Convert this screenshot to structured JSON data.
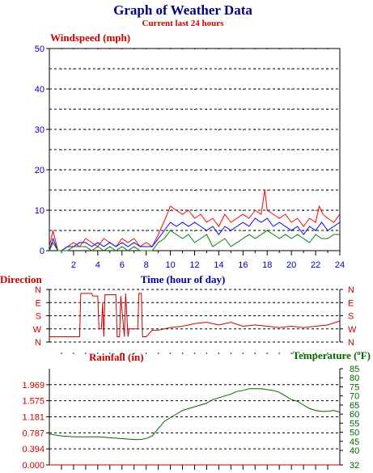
{
  "header": {
    "title": "Graph of Weather Data",
    "subtitle": "Current last 24 hours"
  },
  "colors": {
    "title": "#000080",
    "accent_red": "#cc0000",
    "axis_blue": "#0000aa",
    "temp_green": "#006600",
    "wind_red": "#ff0000",
    "wind_blue": "#0000ff",
    "wind_green": "#008000",
    "grid": "#000000"
  },
  "chart_data": [
    {
      "type": "line",
      "title": "Windspeed (mph)",
      "xlabel": "Time (hour of day)",
      "ylabel": "Windspeed (mph)",
      "xlim": [
        0,
        24
      ],
      "ylim": [
        0,
        50
      ],
      "x_ticks": [
        2,
        4,
        6,
        8,
        10,
        12,
        14,
        16,
        18,
        20,
        22,
        24
      ],
      "y_ticks": [
        0,
        10,
        20,
        30,
        40,
        50
      ],
      "grid": true,
      "series": [
        {
          "color": "#ff0000",
          "x": [
            0,
            0.3,
            0.7,
            1,
            1.5,
            2,
            2.5,
            3,
            3.5,
            4,
            4.5,
            5,
            5.5,
            6,
            6.5,
            7,
            7.5,
            8,
            8.5,
            9,
            9.3,
            9.6,
            10,
            10.5,
            11,
            11.5,
            12,
            12.5,
            13,
            13.5,
            14,
            14.5,
            15,
            15.5,
            16,
            16.5,
            17,
            17.5,
            17.8,
            18,
            18.5,
            19,
            19.5,
            20,
            20.5,
            21,
            21.5,
            22,
            22.3,
            22.6,
            23,
            23.5,
            24
          ],
          "values": [
            1,
            5,
            0,
            0,
            1,
            2,
            1,
            3,
            2,
            1,
            3,
            2,
            1,
            3,
            2,
            3,
            1,
            2,
            1,
            4,
            6,
            8,
            11,
            10,
            9,
            10,
            8,
            9,
            7,
            8,
            6,
            9,
            7,
            8,
            9,
            8,
            10,
            9,
            15,
            10,
            9,
            8,
            9,
            7,
            8,
            6,
            8,
            7,
            11,
            9,
            8,
            7,
            9
          ]
        },
        {
          "color": "#0000ff",
          "x": [
            0,
            0.3,
            0.7,
            1,
            1.5,
            2,
            2.5,
            3,
            3.5,
            4,
            4.5,
            5,
            5.5,
            6,
            6.5,
            7,
            7.5,
            8,
            8.5,
            9,
            9.5,
            10,
            10.5,
            11,
            11.5,
            12,
            12.5,
            13,
            13.5,
            14,
            14.5,
            15,
            15.5,
            16,
            16.5,
            17,
            17.5,
            18,
            18.5,
            19,
            19.5,
            20,
            20.5,
            21,
            21.5,
            22,
            22.5,
            23,
            23.5,
            24
          ],
          "values": [
            0,
            3,
            0,
            0,
            1,
            1,
            2,
            2,
            1,
            2,
            1,
            2,
            1,
            2,
            1,
            2,
            1,
            1,
            1,
            3,
            5,
            7,
            6,
            7,
            6,
            7,
            6,
            5,
            6,
            4,
            6,
            5,
            6,
            7,
            6,
            8,
            7,
            8,
            6,
            7,
            6,
            5,
            6,
            4,
            6,
            5,
            7,
            5,
            6,
            7
          ]
        },
        {
          "color": "#008000",
          "x": [
            0,
            0.3,
            0.7,
            1,
            1.5,
            2,
            2.5,
            3,
            3.5,
            4,
            4.5,
            5,
            5.5,
            6,
            6.5,
            7,
            7.5,
            8,
            8.5,
            9,
            9.5,
            10,
            10.5,
            11,
            11.5,
            12,
            12.5,
            13,
            13.5,
            14,
            14.5,
            15,
            15.5,
            16,
            16.5,
            17,
            17.5,
            18,
            18.5,
            19,
            19.5,
            20,
            20.5,
            21,
            21.5,
            22,
            22.5,
            23,
            23.5,
            24
          ],
          "values": [
            0,
            2,
            0,
            0,
            0,
            1,
            1,
            1,
            0,
            1,
            0,
            1,
            0,
            1,
            0,
            1,
            0,
            0,
            0,
            2,
            3,
            5,
            4,
            3,
            4,
            2,
            3,
            4,
            1,
            2,
            3,
            1,
            2,
            3,
            4,
            3,
            4,
            5,
            4,
            3,
            4,
            3,
            4,
            3,
            2,
            4,
            3,
            3,
            4,
            4
          ]
        }
      ]
    },
    {
      "type": "line",
      "title": "Direction",
      "xlim": [
        0,
        24
      ],
      "y_categories": [
        "N",
        "W",
        "S",
        "E",
        "N"
      ],
      "grid": true,
      "series": [
        {
          "color": "#cc0000",
          "x": [
            0,
            2.5,
            2.6,
            3.5,
            3.6,
            4,
            4.1,
            4.3,
            4.4,
            4.5,
            4.6,
            5.5,
            5.6,
            5.8,
            5.9,
            6.2,
            6.3,
            6.5,
            6.6,
            7.3,
            7.4,
            7.6,
            7.7,
            8,
            8.5,
            9,
            10,
            11,
            12,
            13,
            14,
            15,
            16,
            17,
            18,
            19,
            20,
            21,
            22,
            23,
            24
          ],
          "values": [
            0.4,
            0.4,
            3.7,
            3.7,
            3.5,
            3.5,
            1.0,
            1.0,
            3.0,
            0.4,
            3.6,
            3.6,
            0.4,
            0.4,
            3.5,
            0.4,
            3.7,
            0.4,
            1.0,
            1.0,
            3.7,
            3.7,
            0.4,
            0.4,
            0.9,
            0.9,
            1.1,
            1.2,
            1.4,
            1.5,
            1.3,
            1.5,
            1.2,
            1.3,
            1.2,
            1.1,
            1.2,
            1.1,
            1.2,
            1.3,
            1.6
          ]
        }
      ]
    },
    {
      "type": "line",
      "title": "Rainfall (in)",
      "xlim": [
        0,
        24
      ],
      "ylim": [
        0,
        2.362
      ],
      "y_ticks": [
        "0.000",
        "0.394",
        "0.787",
        "1.181",
        "1.575",
        "1.969"
      ],
      "grid": true,
      "series": [
        {
          "color": "#cc0000",
          "x": [
            0,
            24
          ],
          "values": [
            0,
            0
          ]
        }
      ]
    },
    {
      "type": "line",
      "title": "Temperature (ºF)",
      "xlim": [
        0,
        24
      ],
      "ylim": [
        32,
        85
      ],
      "y_ticks": [
        32,
        40,
        45,
        50,
        55,
        60,
        65,
        70,
        75,
        80,
        85
      ],
      "series": [
        {
          "color": "#006600",
          "x": [
            0,
            0.5,
            1,
            2,
            3,
            4,
            5,
            6,
            7,
            7.5,
            8,
            8.5,
            9,
            9.5,
            10,
            10.5,
            11,
            11.5,
            12,
            12.5,
            13,
            13.5,
            14,
            14.5,
            15,
            15.5,
            16,
            16.5,
            17,
            17.5,
            18,
            18.5,
            19,
            19.5,
            20,
            20.5,
            21,
            21.5,
            22,
            22.5,
            23,
            23.5,
            24
          ],
          "values": [
            49,
            48.5,
            48,
            47.5,
            47.5,
            47.5,
            47,
            46.5,
            46,
            46,
            46.5,
            48,
            52,
            56,
            58,
            60,
            62,
            63,
            64,
            65,
            66,
            68,
            69,
            70,
            71,
            72.5,
            73,
            74,
            74,
            74,
            73.5,
            73,
            72,
            70,
            68,
            67,
            65,
            63,
            62,
            61.5,
            61.5,
            62,
            61
          ]
        }
      ]
    }
  ]
}
